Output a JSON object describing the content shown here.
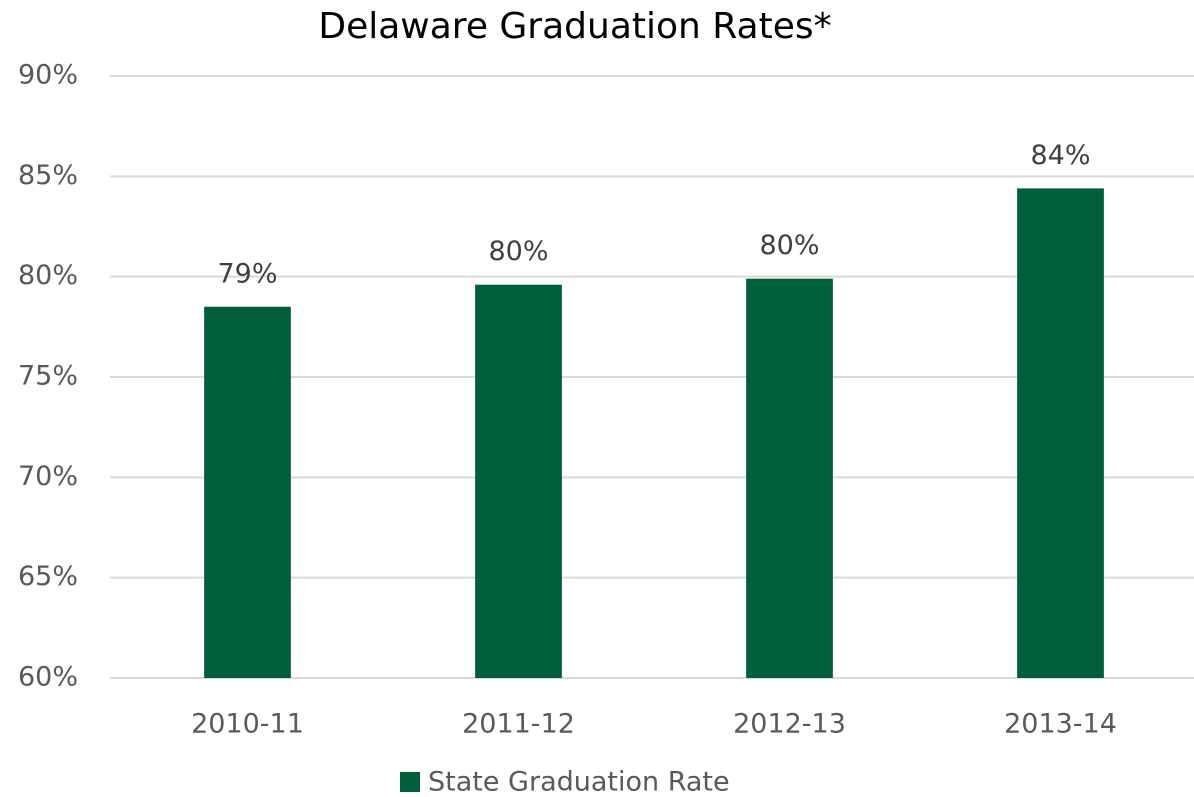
{
  "chart_data": {
    "type": "bar",
    "title": "Delaware Graduation Rates*",
    "categories": [
      "2010-11",
      "2011-12",
      "2012-13",
      "2013-14"
    ],
    "series": [
      {
        "name": "State Graduation Rate",
        "color": "#005e3a",
        "values": [
          78.5,
          79.6,
          79.9,
          84.4
        ],
        "value_labels": [
          "79%",
          "80%",
          "80%",
          "84%"
        ]
      }
    ],
    "ylim": [
      60,
      90
    ],
    "yticks": [
      {
        "value": 60,
        "label": "60%"
      },
      {
        "value": 65,
        "label": "65%"
      },
      {
        "value": 70,
        "label": "70%"
      },
      {
        "value": 75,
        "label": "75%"
      },
      {
        "value": 80,
        "label": "80%"
      },
      {
        "value": 85,
        "label": "85%"
      },
      {
        "value": 90,
        "label": "90%"
      }
    ],
    "grid": true,
    "legend": "bottom"
  }
}
